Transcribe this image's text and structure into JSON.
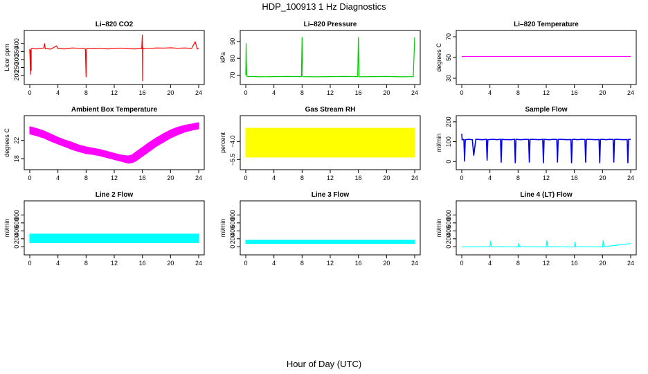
{
  "figure": {
    "title": "HDP_100913  1 Hz Diagnostics",
    "xlabel": "Hour of Day (UTC)"
  },
  "chart_data": [
    {
      "type": "line",
      "id": "co2",
      "title": "Li–820 CO2",
      "ylabel": "Licor ppm",
      "color": "#ff0000",
      "xlim": [
        0,
        24
      ],
      "ylim": [
        170,
        455
      ],
      "xticks": [
        "0",
        "4",
        "8",
        "12",
        "16",
        "20",
        "24"
      ],
      "yticks": [
        200,
        250,
        300,
        350,
        400
      ],
      "series": [
        {
          "name": "CO2",
          "x": [
            0,
            0.1,
            0.1,
            0.2,
            0.2,
            1,
            2,
            2.1,
            2.2,
            3,
            3.8,
            4,
            5,
            6,
            7,
            7.9,
            8,
            8.05,
            8.1,
            9,
            10,
            11,
            12,
            13,
            14,
            15,
            15.9,
            16,
            16.03,
            16.05,
            16.1,
            17,
            18,
            19,
            20,
            21,
            22,
            23,
            23.5,
            23.8,
            24
          ],
          "y": [
            365,
            205,
            360,
            230,
            368,
            366,
            372,
            400,
            368,
            365,
            385,
            368,
            366,
            372,
            370,
            366,
            190,
            362,
            368,
            367,
            369,
            366,
            368,
            371,
            367,
            366,
            368,
            455,
            165,
            375,
            368,
            369,
            372,
            371,
            373,
            370,
            372,
            369,
            410,
            366,
            368
          ]
        }
      ]
    },
    {
      "type": "line",
      "id": "pressure",
      "title": "Li–820 Pressure",
      "ylabel": "kPa",
      "color": "#00cc00",
      "xlim": [
        0,
        24
      ],
      "ylim": [
        67,
        94
      ],
      "xticks": [
        "0",
        "4",
        "8",
        "12",
        "16",
        "20",
        "24"
      ],
      "yticks": [
        70,
        80,
        90
      ],
      "series": [
        {
          "name": "Pressure",
          "x": [
            0,
            0.05,
            0.1,
            0.15,
            0.3,
            1,
            2,
            4,
            6,
            7.9,
            8,
            8.1,
            10,
            12,
            14,
            15.9,
            16,
            16.1,
            18,
            20,
            22,
            23.8,
            24
          ],
          "y": [
            70,
            89,
            76,
            69.5,
            69.2,
            69.3,
            69.1,
            69.2,
            69.3,
            69.2,
            92.5,
            69.2,
            69.1,
            69.2,
            69.3,
            69.2,
            92.5,
            69.1,
            69.2,
            69.3,
            69.1,
            69.2,
            92.5
          ]
        }
      ]
    },
    {
      "type": "line",
      "id": "temperature",
      "title": "Li–820 Temperature",
      "ylabel": "degrees C",
      "color": "#ff00ff",
      "xlim": [
        0,
        24
      ],
      "ylim": [
        28,
        72
      ],
      "xticks": [
        "0",
        "4",
        "8",
        "12",
        "16",
        "20",
        "24"
      ],
      "yticks": [
        30,
        50,
        70
      ],
      "series": [
        {
          "name": "Temperature",
          "x": [
            0,
            24
          ],
          "y": [
            51,
            51
          ]
        }
      ]
    },
    {
      "type": "band",
      "id": "ambient",
      "title": "Ambient Box Temperature",
      "ylabel": "degrees C",
      "color": "#ff00ff",
      "xlim": [
        0,
        24
      ],
      "ylim": [
        16.5,
        26.5
      ],
      "xticks": [
        "0",
        "4",
        "8",
        "12",
        "16",
        "20",
        "24"
      ],
      "yticks": [
        18,
        22
      ],
      "series": [
        {
          "name": "Ambient",
          "x": [
            0,
            1,
            2,
            3,
            4,
            5,
            6,
            7,
            8,
            9,
            10,
            11,
            12,
            13,
            14,
            14.5,
            15,
            16,
            17,
            18,
            19,
            20,
            21,
            22,
            23,
            24
          ],
          "low": [
            23.4,
            23,
            22.5,
            21.8,
            21.2,
            20.6,
            20,
            19.5,
            19.1,
            18.9,
            18.6,
            18.2,
            17.8,
            17.4,
            17,
            17.1,
            17.4,
            18.5,
            19.6,
            20.7,
            21.6,
            22.5,
            23.2,
            23.8,
            24.2,
            24.5
          ],
          "high": [
            25,
            24.6,
            24.1,
            23.4,
            22.7,
            22.1,
            21.6,
            21,
            20.6,
            20.3,
            20,
            19.6,
            19.2,
            18.8,
            18.6,
            18.8,
            19.4,
            20.5,
            21.6,
            22.6,
            23.5,
            24.3,
            24.9,
            25.3,
            25.6,
            25.9
          ]
        }
      ]
    },
    {
      "type": "band",
      "id": "rh",
      "title": "Gas Stream RH",
      "ylabel": "percent",
      "color": "#ffff00",
      "xlim": [
        0,
        24
      ],
      "ylim": [
        -6,
        -2.2
      ],
      "xticks": [
        "0",
        "4",
        "8",
        "12",
        "16",
        "20",
        "24"
      ],
      "yticks": [
        -5.5,
        -4.0
      ],
      "ytick_labels": [
        "−5.5",
        "−4.0"
      ],
      "series": [
        {
          "name": "RH",
          "x": [
            0,
            24
          ],
          "low": [
            -5.3,
            -5.3
          ],
          "high": [
            -2.9,
            -2.9
          ]
        }
      ]
    },
    {
      "type": "line",
      "id": "sample",
      "title": "Sample Flow",
      "ylabel": "ml/min",
      "color": "#0000ee",
      "xlim": [
        0,
        24
      ],
      "ylim": [
        -20,
        210
      ],
      "xticks": [
        "0",
        "4",
        "8",
        "12",
        "16",
        "20",
        "24"
      ],
      "yticks": [
        0,
        100,
        200
      ],
      "series": [
        {
          "name": "Sample Flow",
          "x": [
            0,
            0.05,
            0.1,
            0.3,
            0.4,
            0.5,
            1,
            1.5,
            1.7,
            2,
            2.5,
            3,
            3.5,
            3.6,
            3.7,
            4,
            4.5,
            5,
            5.5,
            5.6,
            5.7,
            6,
            7,
            7.5,
            7.6,
            7.7,
            8,
            8.5,
            9,
            9.5,
            9.6,
            9.7,
            10,
            11,
            11.5,
            11.6,
            11.7,
            12,
            12.5,
            13,
            13.5,
            13.6,
            13.7,
            14,
            15,
            15.5,
            15.6,
            15.7,
            16,
            16.5,
            17,
            17.5,
            17.6,
            17.7,
            18,
            19,
            19.5,
            19.6,
            19.7,
            20,
            20.5,
            21,
            21.5,
            21.6,
            21.7,
            22,
            23,
            23.5,
            23.6,
            23.7,
            24
          ],
          "y": [
            140,
            110,
            112,
            110,
            0,
            110,
            112,
            110,
            30,
            112,
            111,
            110,
            112,
            5,
            110,
            111,
            112,
            110,
            112,
            -5,
            112,
            111,
            110,
            112,
            -8,
            112,
            111,
            110,
            112,
            111,
            -5,
            111,
            112,
            110,
            112,
            -8,
            112,
            111,
            110,
            112,
            111,
            -5,
            111,
            112,
            110,
            111,
            -8,
            111,
            112,
            110,
            112,
            111,
            -5,
            111,
            112,
            110,
            111,
            -8,
            111,
            112,
            110,
            112,
            111,
            -5,
            111,
            112,
            110,
            111,
            -8,
            111,
            112
          ]
        }
      ]
    },
    {
      "type": "band",
      "id": "line2",
      "title": "Line 2 Flow",
      "ylabel": "ml/min",
      "color": "#00ffff",
      "xlim": [
        0,
        24
      ],
      "ylim": [
        -100,
        1050
      ],
      "xticks": [
        "0",
        "4",
        "8",
        "12",
        "16",
        "20",
        "24"
      ],
      "yticks": [
        0,
        200,
        400,
        600,
        800
      ],
      "series": [
        {
          "name": "Line 2",
          "x": [
            0,
            24
          ],
          "low": [
            100,
            100
          ],
          "high": [
            320,
            320
          ]
        }
      ]
    },
    {
      "type": "band",
      "id": "line3",
      "title": "Line 3 Flow",
      "ylabel": "ml/min",
      "color": "#00ffff",
      "xlim": [
        0,
        24
      ],
      "ylim": [
        -100,
        1050
      ],
      "xticks": [
        "0",
        "4",
        "8",
        "12",
        "16",
        "20",
        "24"
      ],
      "yticks": [
        0,
        200,
        400,
        600,
        800
      ],
      "series": [
        {
          "name": "Line 3",
          "x": [
            0,
            24
          ],
          "low": [
            80,
            80
          ],
          "high": [
            165,
            165
          ]
        }
      ]
    },
    {
      "type": "line",
      "id": "line4",
      "title": "Line 4 (LT) Flow",
      "ylabel": "ml/min",
      "color": "#00ffff",
      "xlim": [
        0,
        24
      ],
      "ylim": [
        -100,
        1050
      ],
      "xticks": [
        "0",
        "4",
        "8",
        "12",
        "16",
        "20",
        "24"
      ],
      "yticks": [
        0,
        200,
        400,
        600,
        800
      ],
      "series": [
        {
          "name": "Line 4",
          "x": [
            0,
            4,
            4.1,
            4.2,
            8,
            8.1,
            8.2,
            12,
            12.1,
            12.2,
            16,
            16.1,
            16.2,
            20,
            20.1,
            20.2,
            24
          ],
          "y": [
            -5,
            0,
            150,
            0,
            -5,
            90,
            0,
            -5,
            160,
            0,
            -5,
            120,
            0,
            -5,
            160,
            0,
            80
          ]
        }
      ]
    }
  ]
}
